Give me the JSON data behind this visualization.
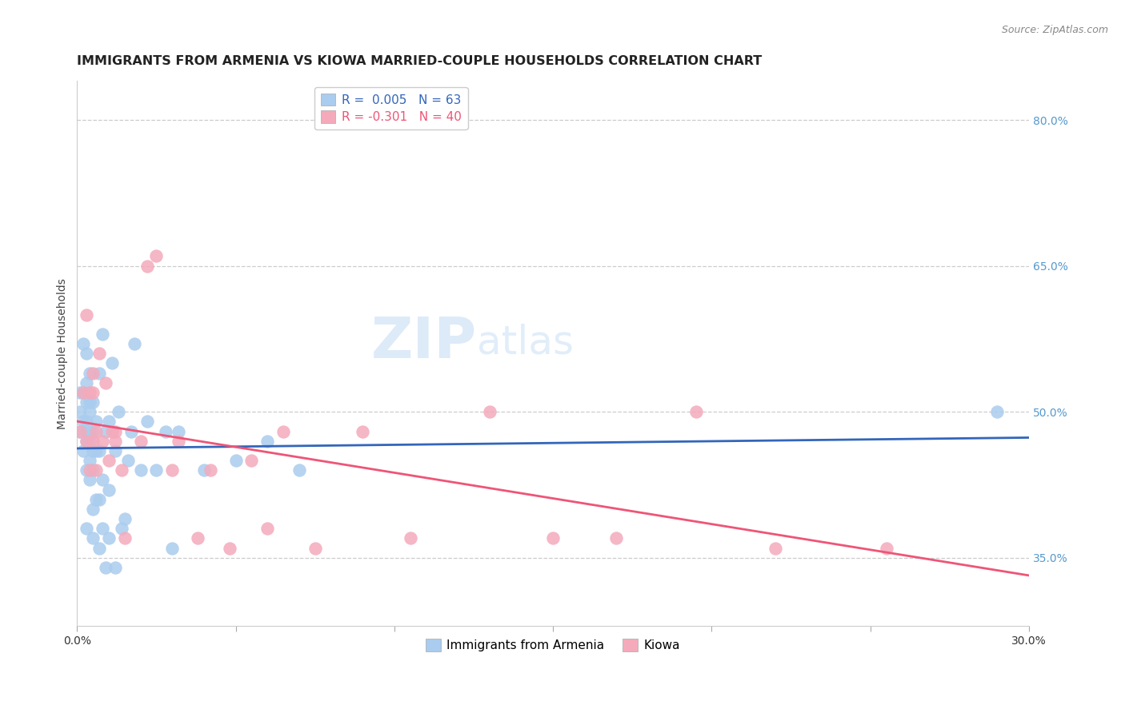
{
  "title": "IMMIGRANTS FROM ARMENIA VS KIOWA MARRIED-COUPLE HOUSEHOLDS CORRELATION CHART",
  "source": "Source: ZipAtlas.com",
  "ylabel": "Married-couple Households",
  "right_yticks": [
    0.35,
    0.5,
    0.65,
    0.8
  ],
  "right_ytick_labels": [
    "35.0%",
    "50.0%",
    "65.0%",
    "80.0%"
  ],
  "legend1_label": "Immigrants from Armenia",
  "legend2_label": "Kiowa",
  "blue_color": "#aaccee",
  "pink_color": "#f4aabb",
  "blue_edge_color": "#5599cc",
  "pink_edge_color": "#ee7799",
  "blue_line_color": "#3366bb",
  "pink_line_color": "#ee5577",
  "watermark_zip": "ZIP",
  "watermark_atlas": "atlas",
  "blue_x": [
    0.001,
    0.001,
    0.001,
    0.002,
    0.002,
    0.002,
    0.002,
    0.003,
    0.003,
    0.003,
    0.003,
    0.003,
    0.003,
    0.003,
    0.003,
    0.004,
    0.004,
    0.004,
    0.004,
    0.004,
    0.004,
    0.004,
    0.005,
    0.005,
    0.005,
    0.005,
    0.005,
    0.005,
    0.006,
    0.006,
    0.006,
    0.007,
    0.007,
    0.007,
    0.007,
    0.008,
    0.008,
    0.008,
    0.009,
    0.009,
    0.01,
    0.01,
    0.01,
    0.011,
    0.012,
    0.012,
    0.013,
    0.014,
    0.015,
    0.016,
    0.017,
    0.018,
    0.02,
    0.022,
    0.025,
    0.028,
    0.03,
    0.032,
    0.04,
    0.05,
    0.06,
    0.07,
    0.29
  ],
  "blue_y": [
    0.48,
    0.5,
    0.52,
    0.46,
    0.49,
    0.52,
    0.57,
    0.38,
    0.44,
    0.47,
    0.48,
    0.49,
    0.51,
    0.53,
    0.56,
    0.43,
    0.45,
    0.47,
    0.48,
    0.5,
    0.51,
    0.54,
    0.37,
    0.4,
    0.44,
    0.46,
    0.48,
    0.51,
    0.41,
    0.46,
    0.49,
    0.36,
    0.41,
    0.46,
    0.54,
    0.38,
    0.43,
    0.58,
    0.34,
    0.48,
    0.37,
    0.42,
    0.49,
    0.55,
    0.34,
    0.46,
    0.5,
    0.38,
    0.39,
    0.45,
    0.48,
    0.57,
    0.44,
    0.49,
    0.44,
    0.48,
    0.36,
    0.48,
    0.44,
    0.45,
    0.47,
    0.44,
    0.5
  ],
  "pink_x": [
    0.001,
    0.002,
    0.003,
    0.003,
    0.004,
    0.004,
    0.005,
    0.005,
    0.005,
    0.006,
    0.006,
    0.007,
    0.008,
    0.009,
    0.01,
    0.011,
    0.012,
    0.012,
    0.014,
    0.015,
    0.02,
    0.022,
    0.025,
    0.03,
    0.032,
    0.038,
    0.042,
    0.048,
    0.055,
    0.06,
    0.065,
    0.075,
    0.09,
    0.105,
    0.13,
    0.15,
    0.17,
    0.195,
    0.22,
    0.255
  ],
  "pink_y": [
    0.48,
    0.52,
    0.47,
    0.6,
    0.44,
    0.52,
    0.47,
    0.52,
    0.54,
    0.44,
    0.48,
    0.56,
    0.47,
    0.53,
    0.45,
    0.48,
    0.47,
    0.48,
    0.44,
    0.37,
    0.47,
    0.65,
    0.66,
    0.44,
    0.47,
    0.37,
    0.44,
    0.36,
    0.45,
    0.38,
    0.48,
    0.36,
    0.48,
    0.37,
    0.5,
    0.37,
    0.37,
    0.5,
    0.36,
    0.36
  ],
  "xlim": [
    0.0,
    0.3
  ],
  "ylim": [
    0.28,
    0.84
  ],
  "title_fontsize": 11.5,
  "source_fontsize": 9,
  "axis_label_fontsize": 10,
  "tick_fontsize": 10,
  "legend_R_blue": "#3366bb",
  "legend_N_blue": "#3366bb",
  "legend_R_pink": "#ee5577",
  "legend_N_pink": "#3366bb"
}
